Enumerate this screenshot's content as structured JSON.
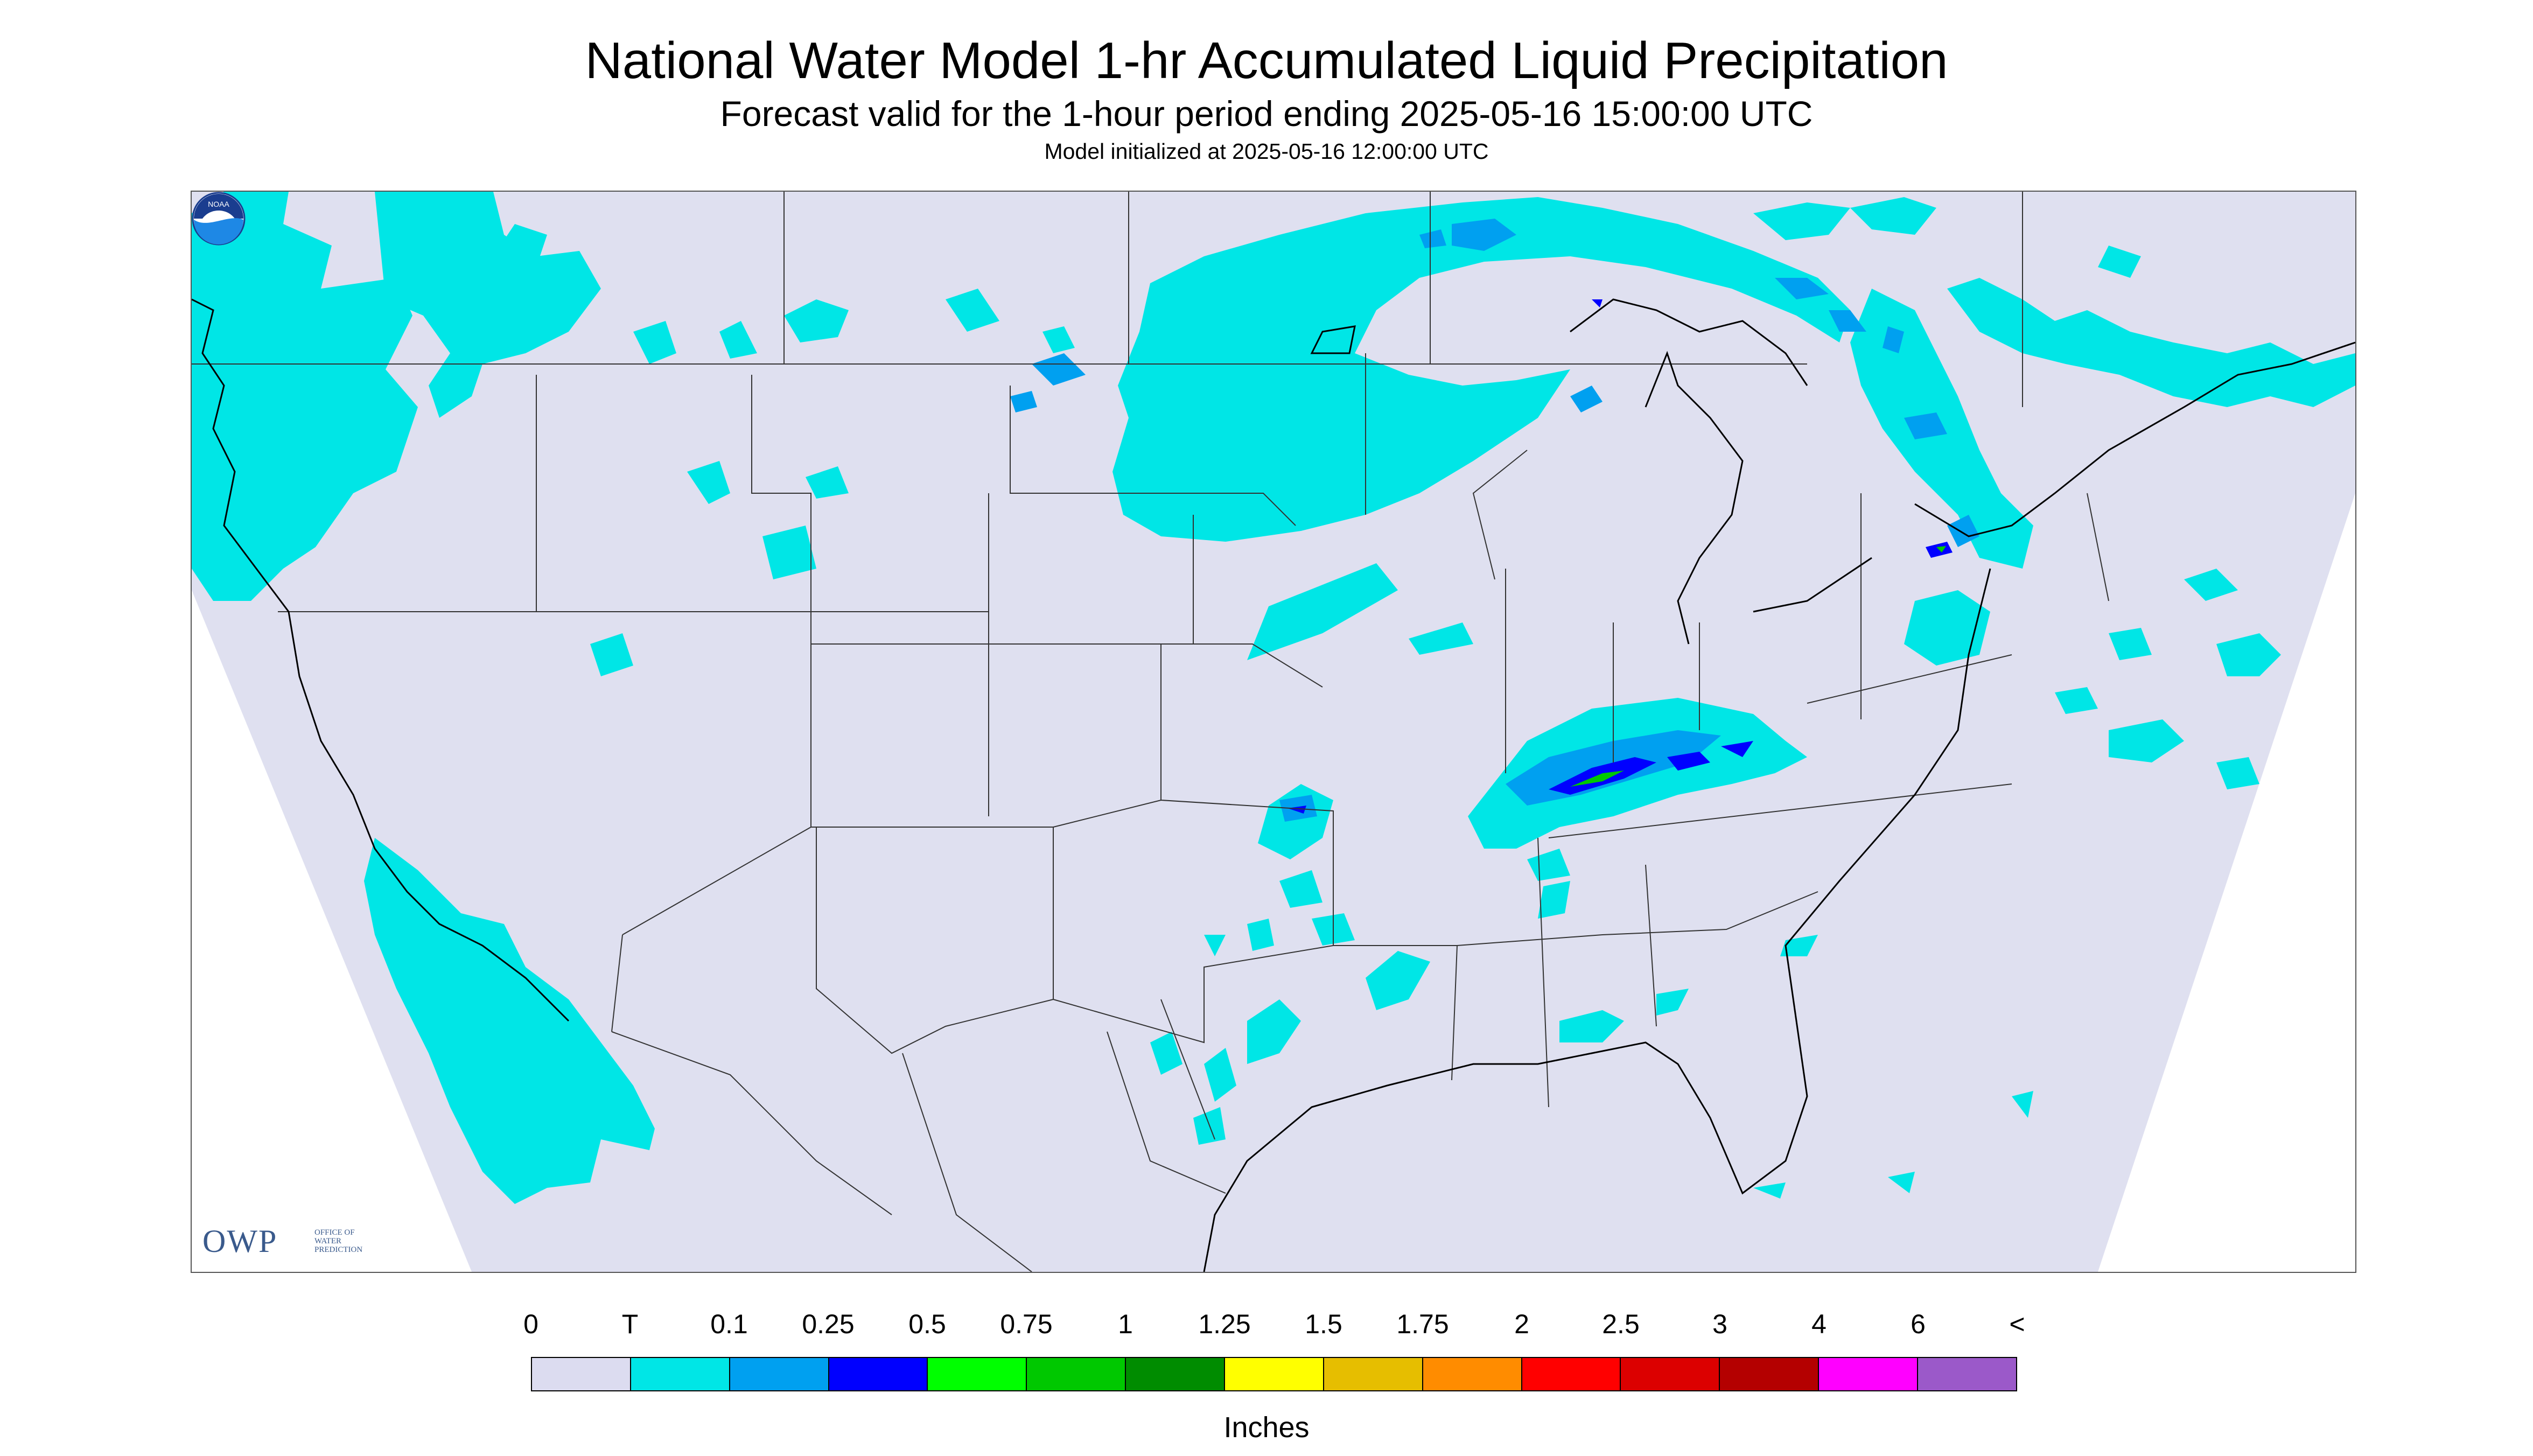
{
  "header": {
    "title": "National Water Model 1-hr Accumulated Liquid Precipitation",
    "subtitle": "Forecast valid for the 1-hour period ending 2025-05-16 15:00:00 UTC",
    "init": "Model initialized at 2025-05-16 12:00:00 UTC"
  },
  "logos": {
    "owp_main": "OWP",
    "owp_sub_1": "OFFICE OF",
    "owp_sub_2": "WATER",
    "owp_sub_3": "PREDICTION",
    "noaa_text": "NOAA"
  },
  "colors": {
    "map_background": "#dfe0f0",
    "outside_domain": "#ffffff",
    "light_precip": "#00e6e6",
    "medium_precip": "#00a0f0",
    "heavy_precip": "#0000ff",
    "green_precip": "#00c800"
  },
  "legend": {
    "labels": [
      "0",
      "T",
      "0.1",
      "0.25",
      "0.5",
      "0.75",
      "1",
      "1.25",
      "1.5",
      "1.75",
      "2",
      "2.5",
      "3",
      "4",
      "6",
      "<"
    ],
    "swatches": [
      "#dcdcf0",
      "#00e6e6",
      "#00a0f0",
      "#0000ff",
      "#00ff00",
      "#00c800",
      "#008c00",
      "#ffff00",
      "#e6be00",
      "#ff8c00",
      "#ff0000",
      "#dc0000",
      "#b40000",
      "#ff00ff",
      "#9b59c9"
    ],
    "units": "Inches"
  }
}
